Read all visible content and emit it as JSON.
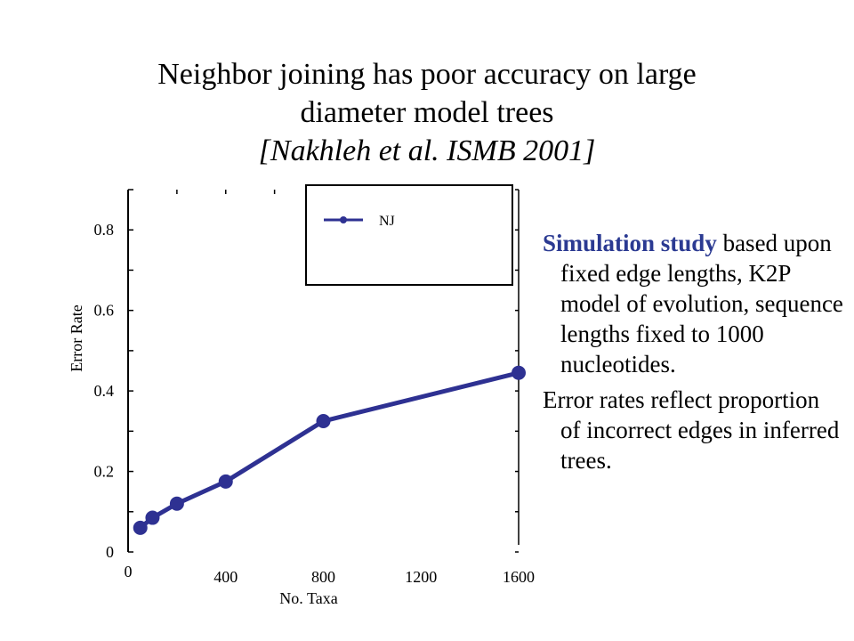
{
  "title": {
    "line1": "Neighbor joining has poor accuracy on large",
    "line2": "diameter model trees",
    "citation": "[Nakhleh et al. ISMB 2001]"
  },
  "chart_data": {
    "type": "line",
    "title": "",
    "xlabel": "No. Taxa",
    "ylabel": "Error Rate",
    "xlim": [
      0,
      1600
    ],
    "ylim": [
      0,
      0.9
    ],
    "x_ticks": [
      0,
      400,
      800,
      1200,
      1600
    ],
    "y_ticks": [
      0,
      0.2,
      0.4,
      0.6,
      0.8
    ],
    "y_tick_labels": [
      "0",
      "0.2",
      "0.4",
      "0.6",
      "0.8"
    ],
    "legend_position": "top-right",
    "grid": false,
    "series": [
      {
        "name": "NJ",
        "color": "#2e3192",
        "x": [
          50,
          100,
          200,
          400,
          800,
          1600
        ],
        "y": [
          0.06,
          0.085,
          0.12,
          0.175,
          0.325,
          0.445
        ]
      }
    ]
  },
  "side_text": {
    "p1_highlight": "Simulation study",
    "p1_rest": " based upon fixed edge lengths, K2P model of evolution, sequence lengths fixed to 1000 nucleotides.",
    "p2": "Error rates reflect proportion of incorrect edges in inferred trees."
  }
}
